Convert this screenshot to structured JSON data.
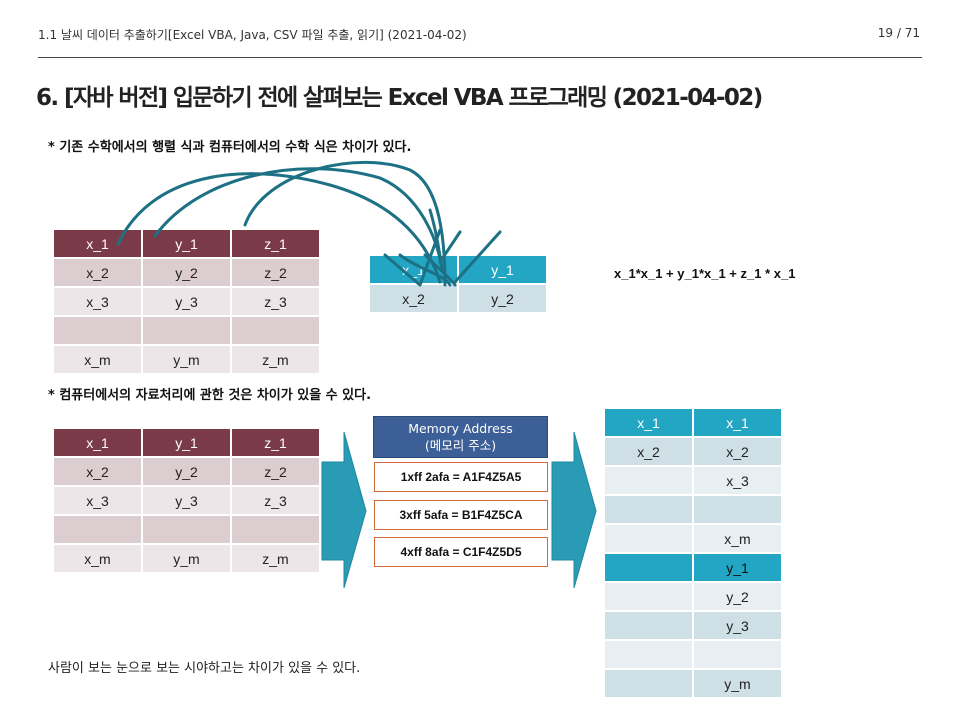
{
  "header": {
    "doc_title": "1.1 날씨 데이터 추출하기[Excel VBA, Java, CSV 파일 추출, 읽기] (2021-04-02)",
    "page_indicator": "19 / 71"
  },
  "title": "6. [자바 버전] 입문하기 전에 살펴보는 Excel VBA 프로그래밍 (2021-04-02)",
  "section1": {
    "note": "* 기존 수학에서의 행렬 식과 컴퓨터에서의 수학 식은 차이가 있다.",
    "left_table": [
      [
        "x_1",
        "y_1",
        "z_1"
      ],
      [
        "x_2",
        "y_2",
        "z_2"
      ],
      [
        "x_3",
        "y_3",
        "z_3"
      ],
      [
        "",
        "",
        ""
      ],
      [
        "x_m",
        "y_m",
        "z_m"
      ]
    ],
    "right_table": [
      [
        "x_1",
        "y_1"
      ],
      [
        "x_2",
        "y_2"
      ]
    ],
    "formula": "x_1*x_1 + y_1*x_1 + z_1 * x_1"
  },
  "section2": {
    "note": "* 컴퓨터에서의 자료처리에 관한 것은 차이가 있을 수 있다.",
    "left_table": [
      [
        "x_1",
        "y_1",
        "z_1"
      ],
      [
        "x_2",
        "y_2",
        "z_2"
      ],
      [
        "x_3",
        "y_3",
        "z_3"
      ],
      [
        "",
        "",
        ""
      ],
      [
        "x_m",
        "y_m",
        "z_m"
      ]
    ],
    "memory": {
      "title_line1": "Memory Address",
      "title_line2": "(메모리 주소)",
      "entries": [
        "1xff 2afa = A1F4Z5A5",
        "3xff 5afa = B1F4Z5CA",
        "4xff 8afa = C1F4Z5D5"
      ]
    },
    "result_table": [
      [
        "x_1",
        "x_1"
      ],
      [
        "x_2",
        "x_2"
      ],
      [
        "",
        "x_3"
      ],
      [
        "",
        ""
      ],
      [
        "",
        "x_m"
      ],
      [
        "",
        "y_1"
      ],
      [
        "",
        "y_2"
      ],
      [
        "",
        "y_3"
      ],
      [
        "",
        ""
      ],
      [
        "",
        "y_m"
      ]
    ]
  },
  "caption": "사람이 보는 눈으로 보는 시야하고는 차이가 있을 수 있다.",
  "colors": {
    "maroon_header": "#7b3a48",
    "teal_header": "#23a5c4",
    "arrow": "#2a9bb5",
    "annotation_ink": "#1d7184"
  }
}
